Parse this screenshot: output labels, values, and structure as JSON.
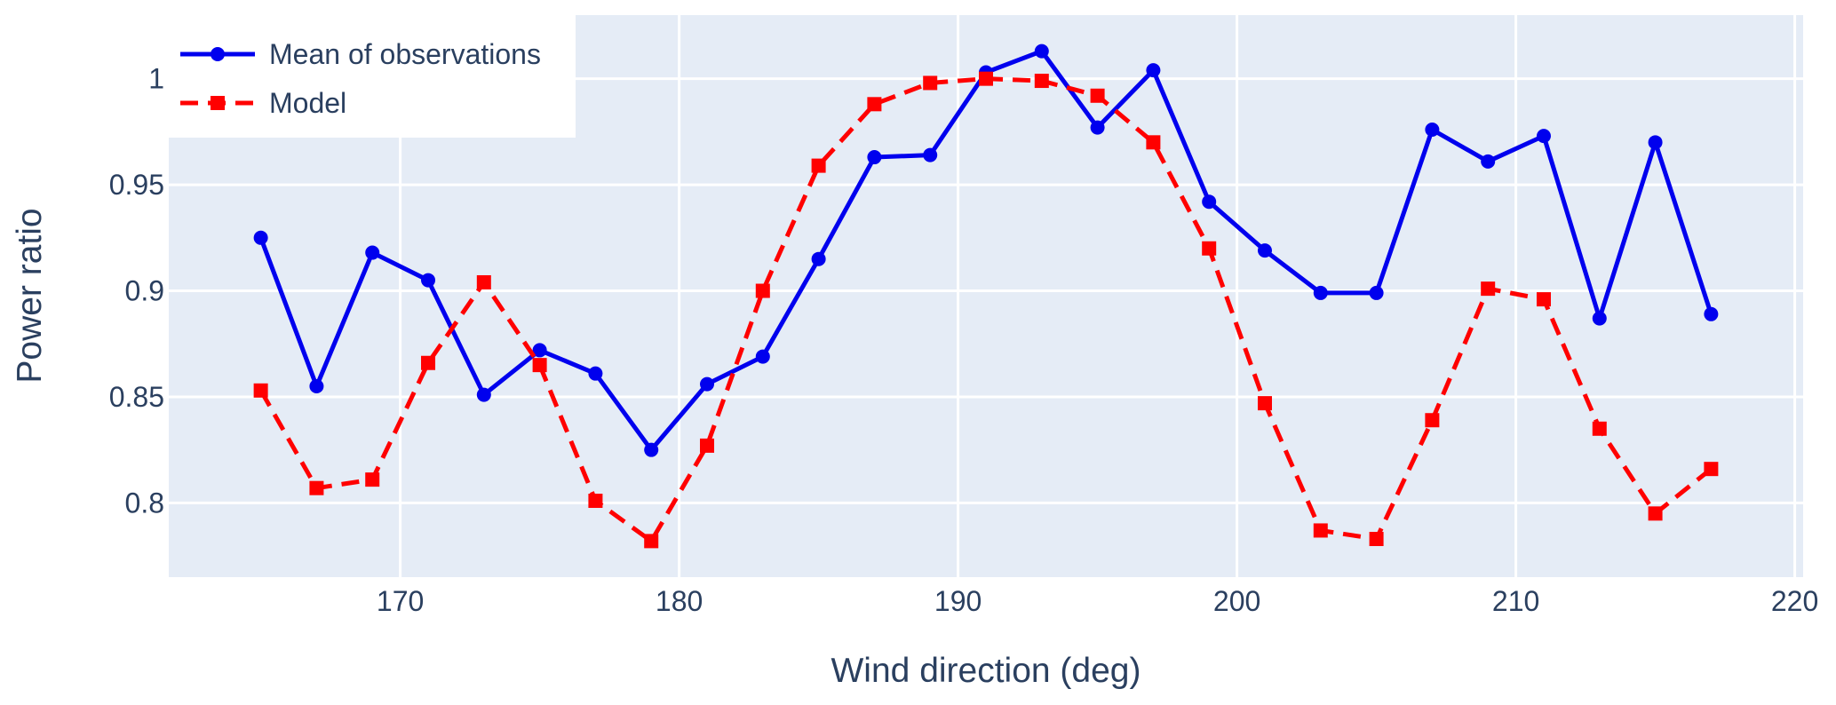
{
  "chart_data": {
    "type": "line",
    "xlabel": "Wind direction (deg)",
    "ylabel": "Power ratio",
    "xlim": [
      161.7,
      220.3
    ],
    "ylim": [
      0.765,
      1.03
    ],
    "x_ticks": [
      170,
      180,
      190,
      200,
      210,
      220
    ],
    "y_ticks": [
      0.8,
      0.85,
      0.9,
      0.95,
      1
    ],
    "y_tick_labels": [
      "0.8",
      "0.85",
      "0.9",
      "0.95",
      "1"
    ],
    "grid": true,
    "legend_position": "top-left",
    "x": [
      165,
      167,
      169,
      171,
      173,
      175,
      177,
      179,
      181,
      183,
      185,
      187,
      189,
      191,
      193,
      195,
      197,
      199,
      201,
      203,
      205,
      207,
      209,
      211,
      213,
      215,
      217
    ],
    "series": [
      {
        "name": "Mean of observations",
        "color": "#0000ee",
        "marker": "circle",
        "dash": "solid",
        "values": [
          0.925,
          0.855,
          0.918,
          0.905,
          0.851,
          0.872,
          0.861,
          0.825,
          0.856,
          0.869,
          0.915,
          0.963,
          0.964,
          1.003,
          1.013,
          0.977,
          1.004,
          0.942,
          0.919,
          0.899,
          0.899,
          0.976,
          0.961,
          0.973,
          0.887,
          0.97,
          0.889
        ]
      },
      {
        "name": "Model",
        "color": "#ff0000",
        "marker": "square",
        "dash": "dash",
        "values": [
          0.853,
          0.807,
          0.811,
          0.866,
          0.904,
          0.865,
          0.801,
          0.782,
          0.827,
          0.9,
          0.959,
          0.988,
          0.998,
          1.0,
          0.999,
          0.992,
          0.97,
          0.92,
          0.847,
          0.787,
          0.783,
          0.839,
          0.901,
          0.896,
          0.835,
          0.795,
          0.816
        ]
      }
    ]
  }
}
